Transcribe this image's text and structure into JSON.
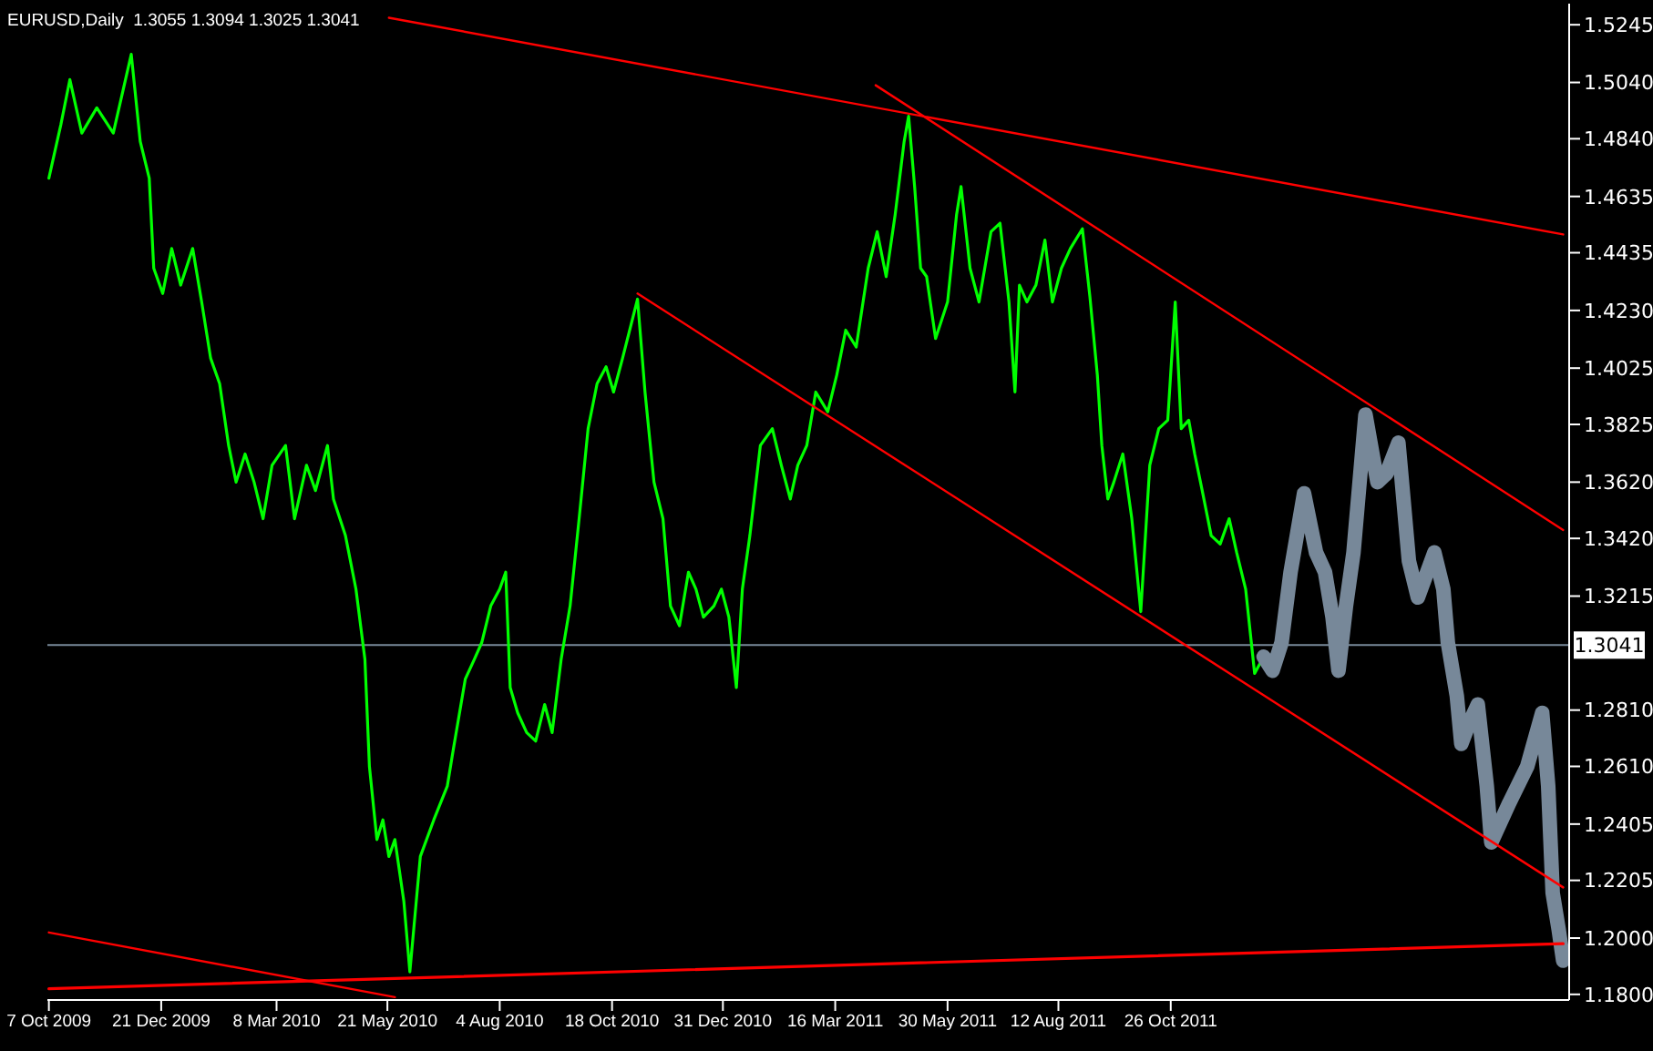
{
  "chart_data": {
    "type": "line",
    "title": "EURUSD,Daily  1.3055 1.3094 1.3025 1.3041",
    "xlim": [
      "2009-10-06",
      "2012-07-18"
    ],
    "xticks": [
      {
        "value": "2009-10-07",
        "label": "7 Oct 2009"
      },
      {
        "value": "2009-12-21",
        "label": "21 Dec 2009"
      },
      {
        "value": "2010-03-08",
        "label": "8 Mar 2010"
      },
      {
        "value": "2010-05-21",
        "label": "21 May 2010"
      },
      {
        "value": "2010-08-04",
        "label": "4 Aug 2010"
      },
      {
        "value": "2010-10-18",
        "label": "18 Oct 2010"
      },
      {
        "value": "2010-12-31",
        "label": "31 Dec 2010"
      },
      {
        "value": "2011-03-16",
        "label": "16 Mar 2011"
      },
      {
        "value": "2011-05-30",
        "label": "30 May 2011"
      },
      {
        "value": "2011-08-12",
        "label": "12 Aug 2011"
      },
      {
        "value": "2011-10-26",
        "label": "26 Oct 2011"
      }
    ],
    "ylim": [
      1.178,
      1.532
    ],
    "yticks": [
      1.5245,
      {
        "value": 1.504,
        "label": "1.5040"
      },
      {
        "value": 1.484,
        "label": "1.4840"
      },
      1.4635,
      1.4435,
      {
        "value": 1.423,
        "label": "1.4230"
      },
      1.4025,
      1.3825,
      {
        "value": 1.362,
        "label": "1.3620"
      },
      {
        "value": 1.342,
        "label": "1.3420"
      },
      1.3215,
      {
        "value": 1.281,
        "label": "1.2810"
      },
      {
        "value": 1.261,
        "label": "1.2610"
      },
      1.2405,
      1.2205,
      {
        "value": 1.2,
        "label": "1.2000"
      },
      {
        "value": 1.18,
        "label": "1.1800"
      }
    ],
    "grid": false,
    "ref_lines": [
      {
        "axis": "y",
        "value": 1.3041,
        "label": "1.3041",
        "color": "#778899"
      }
    ],
    "series": [
      {
        "color": "#00ff00",
        "x": [
          "2009-10-07",
          "2009-10-15",
          "2009-10-21",
          "2009-10-29",
          "2009-11-08",
          "2009-11-19",
          "2009-12-01",
          "2009-12-07",
          "2009-12-13",
          "2009-12-16",
          "2009-12-22",
          "2009-12-28",
          "2010-01-03",
          "2010-01-11",
          "2010-01-17",
          "2010-01-23",
          "2010-01-29",
          "2010-02-04",
          "2010-02-09",
          "2010-02-15",
          "2010-02-21",
          "2010-02-27",
          "2010-03-05",
          "2010-03-14",
          "2010-03-20",
          "2010-03-28",
          "2010-04-03",
          "2010-04-11",
          "2010-04-15",
          "2010-04-23",
          "2010-04-30",
          "2010-05-06",
          "2010-05-09",
          "2010-05-14",
          "2010-05-18",
          "2010-05-22",
          "2010-05-26",
          "2010-06-01",
          "2010-06-05",
          "2010-06-12",
          "2010-06-21",
          "2010-06-30",
          "2010-07-04",
          "2010-07-12",
          "2010-07-18",
          "2010-07-23",
          "2010-07-29",
          "2010-08-04",
          "2010-08-08",
          "2010-08-11",
          "2010-08-16",
          "2010-08-22",
          "2010-08-28",
          "2010-09-03",
          "2010-09-08",
          "2010-09-14",
          "2010-09-20",
          "2010-09-26",
          "2010-10-02",
          "2010-10-08",
          "2010-10-14",
          "2010-10-19",
          "2010-10-25",
          "2010-11-04",
          "2010-11-09",
          "2010-11-15",
          "2010-11-21",
          "2010-11-26",
          "2010-12-02",
          "2010-12-08",
          "2010-12-13",
          "2010-12-18",
          "2010-12-25",
          "2010-12-30",
          "2011-01-04",
          "2011-01-09",
          "2011-01-13",
          "2011-01-18",
          "2011-01-25",
          "2011-02-02",
          "2011-02-08",
          "2011-02-14",
          "2011-02-19",
          "2011-02-25",
          "2011-03-03",
          "2011-03-11",
          "2011-03-17",
          "2011-03-23",
          "2011-03-30",
          "2011-04-07",
          "2011-04-13",
          "2011-04-19",
          "2011-04-25",
          "2011-05-01",
          "2011-05-04",
          "2011-05-08",
          "2011-05-12",
          "2011-05-16",
          "2011-05-22",
          "2011-05-30",
          "2011-06-05",
          "2011-06-08",
          "2011-06-14",
          "2011-06-20",
          "2011-06-28",
          "2011-07-04",
          "2011-07-10",
          "2011-07-14",
          "2011-07-17",
          "2011-07-22",
          "2011-07-28",
          "2011-08-03",
          "2011-08-08",
          "2011-08-14",
          "2011-08-20",
          "2011-08-28",
          "2011-09-02",
          "2011-09-07",
          "2011-09-10",
          "2011-09-14",
          "2011-09-18",
          "2011-09-24",
          "2011-09-30",
          "2011-10-06",
          "2011-10-12",
          "2011-10-18",
          "2011-10-24",
          "2011-10-29",
          "2011-11-02",
          "2011-11-07",
          "2011-11-11",
          "2011-11-16",
          "2011-11-22",
          "2011-11-28",
          "2011-12-04",
          "2011-12-09",
          "2011-12-15",
          "2011-12-21",
          "2011-12-27"
        ],
        "values": [
          1.47,
          1.489,
          1.505,
          1.486,
          1.495,
          1.486,
          1.514,
          1.483,
          1.47,
          1.438,
          1.429,
          1.445,
          1.432,
          1.445,
          1.426,
          1.406,
          1.397,
          1.375,
          1.362,
          1.372,
          1.362,
          1.349,
          1.368,
          1.375,
          1.349,
          1.368,
          1.359,
          1.375,
          1.356,
          1.343,
          1.324,
          1.299,
          1.261,
          1.235,
          1.242,
          1.229,
          1.235,
          1.213,
          1.188,
          1.229,
          1.242,
          1.254,
          1.267,
          1.292,
          1.299,
          1.305,
          1.318,
          1.324,
          1.33,
          1.289,
          1.28,
          1.273,
          1.27,
          1.283,
          1.273,
          1.299,
          1.318,
          1.349,
          1.381,
          1.397,
          1.403,
          1.394,
          1.406,
          1.427,
          1.394,
          1.362,
          1.349,
          1.318,
          1.311,
          1.33,
          1.324,
          1.314,
          1.318,
          1.324,
          1.314,
          1.289,
          1.324,
          1.343,
          1.375,
          1.381,
          1.368,
          1.356,
          1.368,
          1.375,
          1.394,
          1.387,
          1.4,
          1.416,
          1.41,
          1.438,
          1.451,
          1.435,
          1.457,
          1.483,
          1.492,
          1.467,
          1.438,
          1.435,
          1.413,
          1.426,
          1.457,
          1.467,
          1.438,
          1.426,
          1.451,
          1.454,
          1.426,
          1.394,
          1.432,
          1.426,
          1.432,
          1.448,
          1.426,
          1.438,
          1.445,
          1.452,
          1.428,
          1.4,
          1.375,
          1.356,
          1.362,
          1.372,
          1.349,
          1.316,
          1.368,
          1.381,
          1.384,
          1.426,
          1.381,
          1.384,
          1.372,
          1.359,
          1.343,
          1.34,
          1.349,
          1.337,
          1.324,
          1.294,
          1.3
        ]
      },
      {
        "color": "#778899",
        "x": [
          "2011-12-27",
          "2012-01-02",
          "2012-01-08",
          "2012-01-14",
          "2012-01-23",
          "2012-01-31",
          "2012-02-06",
          "2012-02-11",
          "2012-02-15",
          "2012-02-20",
          "2012-02-25",
          "2012-03-04",
          "2012-03-12",
          "2012-03-18",
          "2012-03-26",
          "2012-04-02",
          "2012-04-08",
          "2012-04-19",
          "2012-04-25",
          "2012-04-28",
          "2012-05-04",
          "2012-05-07",
          "2012-05-12",
          "2012-05-18",
          "2012-05-24",
          "2012-05-27",
          "2012-06-08",
          "2012-06-20",
          "2012-06-30",
          "2012-07-04",
          "2012-07-07",
          "2012-07-11",
          "2012-07-14"
        ],
        "values": [
          1.3,
          1.295,
          1.305,
          1.33,
          1.358,
          1.337,
          1.33,
          1.314,
          1.295,
          1.318,
          1.337,
          1.386,
          1.362,
          1.365,
          1.376,
          1.334,
          1.321,
          1.337,
          1.324,
          1.305,
          1.286,
          1.269,
          1.276,
          1.283,
          1.254,
          1.234,
          1.248,
          1.261,
          1.28,
          1.254,
          1.216,
          1.203,
          1.192
        ]
      },
      {
        "color": "#ff0000",
        "x": [
          "2010-05-22",
          "2012-07-14"
        ],
        "values": [
          1.527,
          1.45
        ]
      },
      {
        "color": "#ff0000",
        "x": [
          "2011-04-12",
          "2012-07-14"
        ],
        "values": [
          1.503,
          1.345
        ]
      },
      {
        "color": "#ff0000",
        "x": [
          "2010-11-04",
          "2012-07-14"
        ],
        "values": [
          1.429,
          1.218
        ]
      },
      {
        "color": "#ff0000",
        "x": [
          "2009-10-07",
          "2010-05-26"
        ],
        "values": [
          1.202,
          1.179
        ]
      },
      {
        "color": "#ff0000",
        "x": [
          "2009-10-07",
          "2012-07-14"
        ],
        "values": [
          1.182,
          1.198
        ]
      }
    ]
  }
}
